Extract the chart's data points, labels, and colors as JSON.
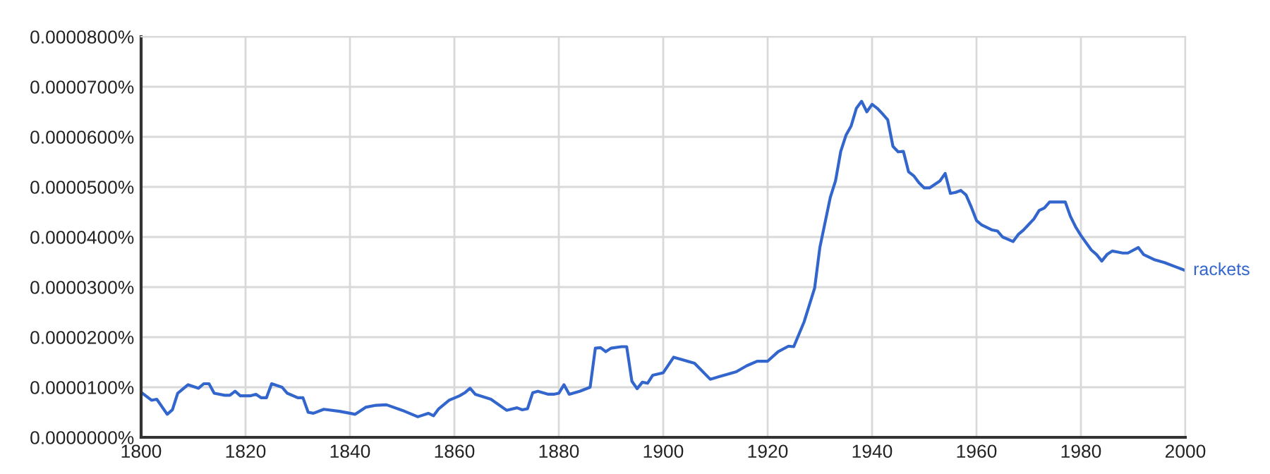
{
  "chart_data": {
    "type": "line",
    "legend": false,
    "grid": true,
    "marker": "none",
    "line_style": "solid",
    "xlim": [
      1800,
      2000
    ],
    "xticks": [
      1800,
      1820,
      1840,
      1860,
      1880,
      1900,
      1920,
      1940,
      1960,
      1980,
      2000
    ],
    "ylim": [
      0,
      8e-05
    ],
    "yticks": [
      {
        "value": 0,
        "label": "0.0000000%"
      },
      {
        "value": 1e-05,
        "label": "0.0000100%"
      },
      {
        "value": 2e-05,
        "label": "0.0000200%"
      },
      {
        "value": 3e-05,
        "label": "0.0000300%"
      },
      {
        "value": 4e-05,
        "label": "0.0000400%"
      },
      {
        "value": 5e-05,
        "label": "0.0000500%"
      },
      {
        "value": 6e-05,
        "label": "0.0000600%"
      },
      {
        "value": 7e-05,
        "label": "0.0000700%"
      },
      {
        "value": 8e-05,
        "label": "0.0000800%"
      }
    ],
    "series": [
      {
        "name": "rackets",
        "color": "#3366cc",
        "x": [
          1800,
          1802,
          1803,
          1805,
          1806,
          1807,
          1809,
          1811,
          1812,
          1813,
          1814,
          1816,
          1817,
          1818,
          1819,
          1821,
          1822,
          1823,
          1824,
          1825,
          1827,
          1828,
          1830,
          1831,
          1832,
          1833,
          1835,
          1838,
          1840,
          1841,
          1843,
          1845,
          1847,
          1850,
          1853,
          1855,
          1856,
          1857,
          1859,
          1861,
          1862,
          1863,
          1864,
          1867,
          1870,
          1872,
          1873,
          1874,
          1875,
          1876,
          1878,
          1879,
          1880,
          1881,
          1882,
          1884,
          1886,
          1887,
          1888,
          1889,
          1890,
          1892,
          1893,
          1894,
          1895,
          1896,
          1897,
          1898,
          1900,
          1902,
          1906,
          1909,
          1912,
          1914,
          1916,
          1918,
          1920,
          1922,
          1924,
          1925,
          1927,
          1929,
          1930,
          1932,
          1933,
          1934,
          1935,
          1936,
          1937,
          1938,
          1939,
          1940,
          1941,
          1942,
          1943,
          1944,
          1945,
          1946,
          1947,
          1948,
          1949,
          1950,
          1951,
          1953,
          1954,
          1955,
          1956,
          1957,
          1958,
          1959,
          1960,
          1961,
          1963,
          1964,
          1965,
          1967,
          1968,
          1969,
          1970,
          1971,
          1972,
          1973,
          1974,
          1975,
          1977,
          1978,
          1979,
          1980,
          1982,
          1983,
          1984,
          1985,
          1986,
          1987,
          1988,
          1989,
          1991,
          1992,
          1993,
          1994,
          1996,
          1998,
          2000
        ],
        "values": [
          9e-06,
          7.4e-06,
          7.6e-06,
          4.6e-06,
          5.5e-06,
          8.8e-06,
          1.05e-05,
          9.8e-06,
          1.07e-05,
          1.07e-05,
          8.8e-06,
          8.4e-06,
          8.4e-06,
          9.2e-06,
          8.3e-06,
          8.3e-06,
          8.6e-06,
          7.9e-06,
          7.9e-06,
          1.07e-05,
          1e-05,
          8.8e-06,
          7.9e-06,
          7.9e-06,
          5e-06,
          4.8e-06,
          5.6e-06,
          5.2e-06,
          4.8e-06,
          4.6e-06,
          6e-06,
          6.4e-06,
          6.5e-06,
          5.4e-06,
          4.1e-06,
          4.8e-06,
          4.3e-06,
          5.7e-06,
          7.4e-06,
          8.3e-06,
          8.9e-06,
          9.8e-06,
          8.6e-06,
          7.6e-06,
          5.4e-06,
          5.9e-06,
          5.5e-06,
          5.7e-06,
          8.9e-06,
          9.2e-06,
          8.6e-06,
          8.6e-06,
          8.8e-06,
          1.05e-05,
          8.6e-06,
          9.2e-06,
          1e-05,
          1.78e-05,
          1.79e-05,
          1.71e-05,
          1.78e-05,
          1.81e-05,
          1.81e-05,
          1.12e-05,
          9.7e-06,
          1.1e-05,
          1.08e-05,
          1.24e-05,
          1.29e-05,
          1.6e-05,
          1.48e-05,
          1.16e-05,
          1.25e-05,
          1.31e-05,
          1.43e-05,
          1.52e-05,
          1.52e-05,
          1.71e-05,
          1.82e-05,
          1.81e-05,
          2.31e-05,
          2.98e-05,
          3.79e-05,
          4.79e-05,
          5.12e-05,
          5.71e-05,
          6.03e-05,
          6.22e-05,
          6.57e-05,
          6.71e-05,
          6.5e-05,
          6.65e-05,
          6.57e-05,
          6.46e-05,
          6.34e-05,
          5.81e-05,
          5.7e-05,
          5.71e-05,
          5.3e-05,
          5.22e-05,
          5.08e-05,
          4.98e-05,
          4.98e-05,
          5.12e-05,
          5.27e-05,
          4.87e-05,
          4.89e-05,
          4.93e-05,
          4.84e-05,
          4.6e-05,
          4.33e-05,
          4.24e-05,
          4.14e-05,
          4.12e-05,
          4e-05,
          3.91e-05,
          4.05e-05,
          4.14e-05,
          4.25e-05,
          4.36e-05,
          4.53e-05,
          4.58e-05,
          4.7e-05,
          4.7e-05,
          4.7e-05,
          4.41e-05,
          4.2e-05,
          4.03e-05,
          3.74e-05,
          3.65e-05,
          3.52e-05,
          3.65e-05,
          3.72e-05,
          3.7e-05,
          3.68e-05,
          3.68e-05,
          3.79e-05,
          3.65e-05,
          3.6e-05,
          3.55e-05,
          3.49e-05,
          3.41e-05,
          3.33e-05
        ]
      }
    ]
  }
}
